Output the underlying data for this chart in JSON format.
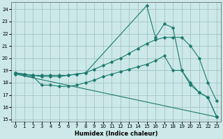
{
  "xlabel": "Humidex (Indice chaleur)",
  "bg_color": "#cce8e8",
  "grid_color": "#9bbfbf",
  "line_color": "#1a7a6e",
  "xlim": [
    -0.5,
    23.5
  ],
  "ylim": [
    14.8,
    24.6
  ],
  "yticks": [
    15,
    16,
    17,
    18,
    19,
    20,
    21,
    22,
    23,
    24
  ],
  "xticks": [
    0,
    1,
    2,
    3,
    4,
    5,
    6,
    7,
    8,
    9,
    10,
    11,
    12,
    13,
    14,
    15,
    16,
    17,
    18,
    19,
    20,
    21,
    22,
    23
  ],
  "series": [
    {
      "x": [
        0,
        1,
        2,
        3,
        4,
        5,
        6,
        7,
        8,
        9,
        10,
        11,
        12,
        13,
        14,
        15,
        16,
        17,
        18,
        19,
        20,
        21,
        22,
        23
      ],
      "y": [
        18.8,
        18.7,
        18.6,
        18.6,
        18.6,
        18.6,
        18.6,
        18.7,
        18.8,
        19.1,
        19.4,
        19.7,
        20.0,
        20.4,
        20.8,
        21.2,
        21.5,
        21.7,
        21.7,
        21.7,
        21.0,
        20.0,
        18.0,
        16.5
      ]
    },
    {
      "x": [
        0,
        1,
        2,
        3,
        4,
        5,
        6,
        7,
        8,
        9,
        10,
        11,
        12,
        13,
        14,
        15,
        16,
        17,
        18,
        19,
        20,
        21,
        22,
        23
      ],
      "y": [
        18.8,
        18.6,
        18.5,
        17.8,
        17.8,
        17.7,
        17.7,
        17.8,
        18.0,
        18.2,
        18.5,
        18.7,
        18.9,
        19.1,
        19.3,
        19.5,
        19.8,
        20.2,
        19.0,
        19.0,
        17.8,
        17.2,
        16.8,
        15.2
      ]
    },
    {
      "x": [
        0,
        1,
        2,
        3,
        4,
        5,
        6,
        7,
        8,
        15,
        16,
        17,
        18,
        19,
        20,
        21,
        22,
        23
      ],
      "y": [
        18.8,
        18.7,
        18.6,
        18.5,
        18.5,
        18.5,
        18.6,
        18.7,
        18.8,
        24.3,
        21.7,
        22.8,
        22.5,
        19.0,
        18.0,
        17.2,
        16.8,
        15.2
      ]
    },
    {
      "x": [
        0,
        23
      ],
      "y": [
        18.7,
        15.2
      ]
    }
  ]
}
